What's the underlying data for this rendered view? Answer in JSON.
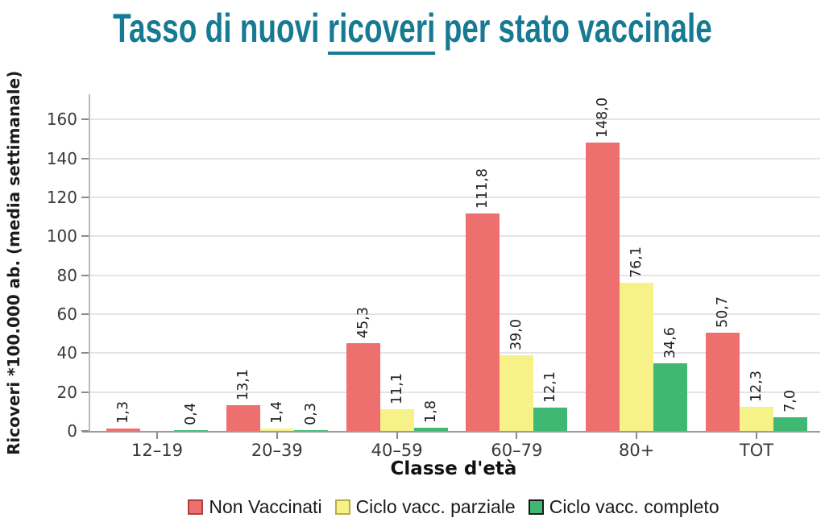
{
  "title": {
    "part1": "Tasso di nuovi ",
    "underlined": "ricoveri",
    "part2": " per stato vaccinale",
    "color": "#177a93"
  },
  "chart_data": {
    "type": "bar",
    "title": "Tasso di nuovi ricoveri per stato vaccinale",
    "xlabel": "Classe d'età",
    "ylabel": "Ricoveri *100.000 ab. (media settimanale)",
    "ylim": [
      0,
      173
    ],
    "yticks": [
      0,
      20,
      40,
      60,
      80,
      100,
      120,
      140,
      160
    ],
    "grid": true,
    "legend_position": "bottom",
    "categories": [
      "12–19",
      "20–39",
      "40–59",
      "60–79",
      "80+",
      "TOT"
    ],
    "series": [
      {
        "name": "Non Vaccinati",
        "color": "#ed6f6e",
        "border_color": "#b0413e",
        "values": [
          1.3,
          13.1,
          45.3,
          111.8,
          148.0,
          50.7
        ],
        "labels": [
          "1,3",
          "13,1",
          "45,3",
          "111,8",
          "148,0",
          "50,7"
        ]
      },
      {
        "name": "Ciclo vacc. parziale",
        "color": "#f7f287",
        "border_color": "#b8ac46",
        "values": [
          null,
          1.4,
          11.1,
          39.0,
          76.1,
          12.3
        ],
        "labels": [
          null,
          "1,4",
          "11,1",
          "39,0",
          "76,1",
          "12,3"
        ]
      },
      {
        "name": "Ciclo vacc. completo",
        "color": "#3eb873",
        "border_color": "#27855",
        "values": [
          0.4,
          0.3,
          1.8,
          12.1,
          34.6,
          7.0
        ],
        "labels": [
          "0,4",
          "0,3",
          "1,8",
          "12,1",
          "34,6",
          "7,0"
        ]
      }
    ]
  }
}
